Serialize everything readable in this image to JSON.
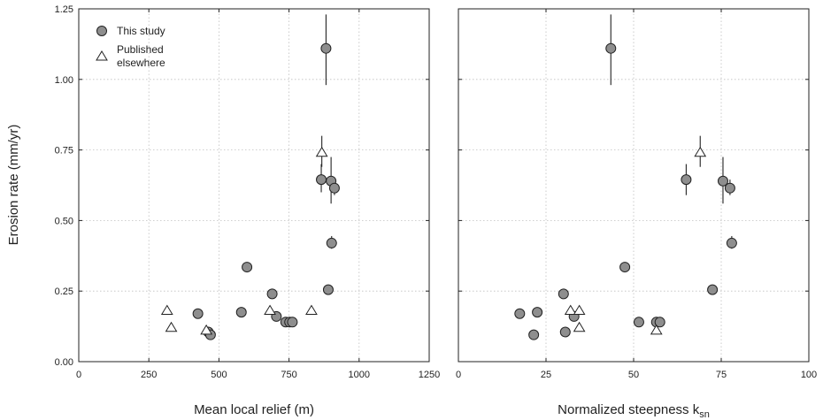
{
  "chart_data": [
    {
      "type": "scatter",
      "xlabel": "Mean local relief (m)",
      "ylabel": "Erosion rate (mm/yr)",
      "xlim": [
        0,
        1250
      ],
      "ylim": [
        0,
        1.25
      ],
      "xticks": [
        0,
        250,
        500,
        750,
        1000,
        1250
      ],
      "yticks": [
        0.0,
        0.25,
        0.5,
        0.75,
        1.0,
        1.25
      ],
      "xtick_labels": [
        "0",
        "250",
        "500",
        "750",
        "1000",
        "1250"
      ],
      "ytick_labels": [
        "0.00",
        "0.25",
        "0.50",
        "0.75",
        "1.00",
        "1.25"
      ],
      "grid": true,
      "legend": {
        "position": "top-left",
        "entries": [
          {
            "label": "This study",
            "marker": "circle"
          },
          {
            "label_lines": [
              "Published",
              "elsewhere"
            ],
            "marker": "triangle"
          }
        ]
      },
      "series": [
        {
          "marker": "circle",
          "points": [
            {
              "x": 425,
              "y": 0.17
            },
            {
              "x": 462,
              "y": 0.105
            },
            {
              "x": 470,
              "y": 0.095
            },
            {
              "x": 580,
              "y": 0.175
            },
            {
              "x": 600,
              "y": 0.335
            },
            {
              "x": 690,
              "y": 0.24
            },
            {
              "x": 705,
              "y": 0.16
            },
            {
              "x": 738,
              "y": 0.14
            },
            {
              "x": 752,
              "y": 0.14
            },
            {
              "x": 762,
              "y": 0.14
            },
            {
              "x": 865,
              "y": 0.645,
              "err": [
                0.6,
                0.7
              ]
            },
            {
              "x": 882,
              "y": 1.11,
              "err": [
                0.98,
                1.23
              ]
            },
            {
              "x": 890,
              "y": 0.255
            },
            {
              "x": 900,
              "y": 0.64,
              "err": [
                0.56,
                0.725
              ]
            },
            {
              "x": 902,
              "y": 0.42,
              "err": [
                0.4,
                0.445
              ]
            },
            {
              "x": 912,
              "y": 0.615,
              "err": [
                0.59,
                0.64
              ]
            }
          ]
        },
        {
          "marker": "triangle",
          "points": [
            {
              "x": 315,
              "y": 0.18
            },
            {
              "x": 330,
              "y": 0.12
            },
            {
              "x": 455,
              "y": 0.11
            },
            {
              "x": 682,
              "y": 0.18
            },
            {
              "x": 830,
              "y": 0.18
            },
            {
              "x": 867,
              "y": 0.74,
              "err": [
                0.69,
                0.8
              ]
            }
          ]
        }
      ]
    },
    {
      "type": "scatter",
      "xlabel": "Normalized steepness k",
      "xlabel_subscript": "sn",
      "xlim": [
        0,
        100
      ],
      "ylim": [
        0,
        1.25
      ],
      "xticks": [
        0,
        25,
        50,
        75,
        100
      ],
      "yticks": [
        0.0,
        0.25,
        0.5,
        0.75,
        1.0,
        1.25
      ],
      "xtick_labels": [
        "0",
        "25",
        "50",
        "75",
        "100"
      ],
      "grid": true,
      "series": [
        {
          "marker": "circle",
          "points": [
            {
              "x": 17.5,
              "y": 0.17
            },
            {
              "x": 21.5,
              "y": 0.095
            },
            {
              "x": 22.5,
              "y": 0.175
            },
            {
              "x": 30.0,
              "y": 0.24
            },
            {
              "x": 30.5,
              "y": 0.105
            },
            {
              "x": 33.0,
              "y": 0.16
            },
            {
              "x": 43.5,
              "y": 1.11,
              "err": [
                0.98,
                1.23
              ]
            },
            {
              "x": 47.5,
              "y": 0.335
            },
            {
              "x": 51.5,
              "y": 0.14
            },
            {
              "x": 56.5,
              "y": 0.14
            },
            {
              "x": 57.5,
              "y": 0.14
            },
            {
              "x": 65.0,
              "y": 0.645,
              "err": [
                0.59,
                0.7
              ]
            },
            {
              "x": 72.5,
              "y": 0.255
            },
            {
              "x": 75.5,
              "y": 0.64,
              "err": [
                0.56,
                0.725
              ]
            },
            {
              "x": 77.5,
              "y": 0.615,
              "err": [
                0.59,
                0.645
              ]
            },
            {
              "x": 78.0,
              "y": 0.42,
              "err": [
                0.4,
                0.445
              ]
            }
          ]
        },
        {
          "marker": "triangle",
          "points": [
            {
              "x": 32.0,
              "y": 0.18
            },
            {
              "x": 34.5,
              "y": 0.12
            },
            {
              "x": 34.5,
              "y": 0.18
            },
            {
              "x": 56.5,
              "y": 0.11
            },
            {
              "x": 69.0,
              "y": 0.74,
              "err": [
                0.69,
                0.8
              ]
            }
          ]
        }
      ]
    }
  ]
}
